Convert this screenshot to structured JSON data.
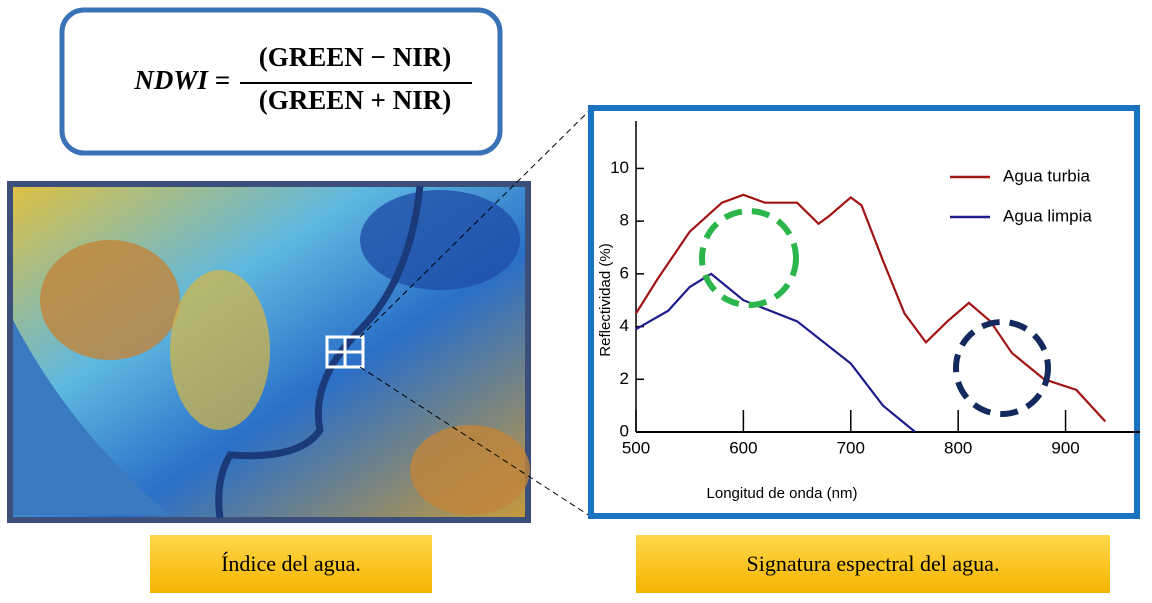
{
  "formula": {
    "lhs": "NDWI =",
    "numerator": "(GREEN − NIR)",
    "denominator": "(GREEN + NIR)"
  },
  "captions": [
    "Índice del agua.",
    "Signatura espectral del agua."
  ],
  "chart_data": {
    "type": "line",
    "x_label": "Longitud de onda (nm)",
    "y_label": "Reflectividad (%)",
    "xlim": [
      500,
      960
    ],
    "ylim": [
      0,
      11.8
    ],
    "xticks": [
      500,
      600,
      700,
      800,
      900
    ],
    "yticks": [
      0,
      2,
      4,
      6,
      8,
      10
    ],
    "series": [
      {
        "name": "Agua turbia",
        "color": "#a11414",
        "x": [
          500,
          520,
          550,
          580,
          600,
          620,
          650,
          670,
          680,
          700,
          710,
          730,
          750,
          770,
          790,
          810,
          830,
          850,
          880,
          910,
          937
        ],
        "values": [
          4.5,
          5.8,
          7.6,
          8.7,
          9.0,
          8.7,
          8.7,
          7.9,
          8.2,
          8.9,
          8.6,
          6.5,
          4.5,
          3.4,
          4.2,
          4.9,
          4.2,
          3.0,
          2.0,
          1.6,
          0.4
        ]
      },
      {
        "name": "Agua limpia",
        "color": "#1c1c8c",
        "x": [
          500,
          530,
          550,
          570,
          600,
          650,
          700,
          730,
          760
        ],
        "values": [
          3.9,
          4.6,
          5.5,
          6.0,
          5.0,
          4.2,
          2.6,
          1.0,
          0.0
        ]
      }
    ]
  }
}
